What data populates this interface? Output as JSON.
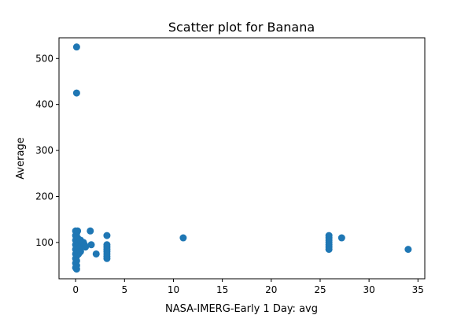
{
  "chart_data": {
    "type": "scatter",
    "title": "Scatter plot for Banana",
    "xlabel": "NASA-IMERG-Early 1 Day: avg",
    "ylabel": "Average",
    "xlim": [
      -1.7,
      35.7
    ],
    "ylim": [
      21,
      545
    ],
    "xticks": [
      0,
      5,
      10,
      15,
      20,
      25,
      30,
      35
    ],
    "yticks": [
      100,
      200,
      300,
      400,
      500
    ],
    "grid": false,
    "legend": "none",
    "marker_color": "#1f77b4",
    "points": [
      {
        "x": 0.1,
        "y": 525
      },
      {
        "x": 0.1,
        "y": 425
      },
      {
        "x": 0.0,
        "y": 125
      },
      {
        "x": 0.1,
        "y": 120
      },
      {
        "x": 0.0,
        "y": 115
      },
      {
        "x": 0.1,
        "y": 110
      },
      {
        "x": 0.0,
        "y": 105
      },
      {
        "x": 0.1,
        "y": 100
      },
      {
        "x": 0.0,
        "y": 95
      },
      {
        "x": 0.1,
        "y": 90
      },
      {
        "x": 0.0,
        "y": 85
      },
      {
        "x": 0.1,
        "y": 80
      },
      {
        "x": 0.0,
        "y": 75
      },
      {
        "x": 0.1,
        "y": 70
      },
      {
        "x": 0.0,
        "y": 65
      },
      {
        "x": 0.1,
        "y": 60
      },
      {
        "x": 0.0,
        "y": 55
      },
      {
        "x": 0.1,
        "y": 50
      },
      {
        "x": 0.0,
        "y": 45
      },
      {
        "x": 0.1,
        "y": 42
      },
      {
        "x": 0.2,
        "y": 125
      },
      {
        "x": 0.2,
        "y": 110
      },
      {
        "x": 0.2,
        "y": 95
      },
      {
        "x": 0.2,
        "y": 80
      },
      {
        "x": 0.3,
        "y": 100
      },
      {
        "x": 0.3,
        "y": 85
      },
      {
        "x": 0.3,
        "y": 75
      },
      {
        "x": 0.4,
        "y": 95
      },
      {
        "x": 0.4,
        "y": 88
      },
      {
        "x": 0.5,
        "y": 105
      },
      {
        "x": 0.5,
        "y": 90
      },
      {
        "x": 0.5,
        "y": 80
      },
      {
        "x": 0.6,
        "y": 98
      },
      {
        "x": 0.7,
        "y": 92
      },
      {
        "x": 0.8,
        "y": 100
      },
      {
        "x": 0.9,
        "y": 95
      },
      {
        "x": 1.0,
        "y": 90
      },
      {
        "x": 1.5,
        "y": 125
      },
      {
        "x": 1.6,
        "y": 95
      },
      {
        "x": 2.1,
        "y": 75
      },
      {
        "x": 3.2,
        "y": 115
      },
      {
        "x": 3.2,
        "y": 95
      },
      {
        "x": 3.2,
        "y": 90
      },
      {
        "x": 3.2,
        "y": 85
      },
      {
        "x": 3.2,
        "y": 80
      },
      {
        "x": 3.2,
        "y": 75
      },
      {
        "x": 3.2,
        "y": 70
      },
      {
        "x": 3.2,
        "y": 65
      },
      {
        "x": 11.0,
        "y": 110
      },
      {
        "x": 25.9,
        "y": 115
      },
      {
        "x": 25.9,
        "y": 110
      },
      {
        "x": 25.9,
        "y": 105
      },
      {
        "x": 25.9,
        "y": 100
      },
      {
        "x": 25.9,
        "y": 95
      },
      {
        "x": 25.9,
        "y": 90
      },
      {
        "x": 25.9,
        "y": 85
      },
      {
        "x": 27.2,
        "y": 110
      },
      {
        "x": 34.0,
        "y": 85
      }
    ]
  }
}
